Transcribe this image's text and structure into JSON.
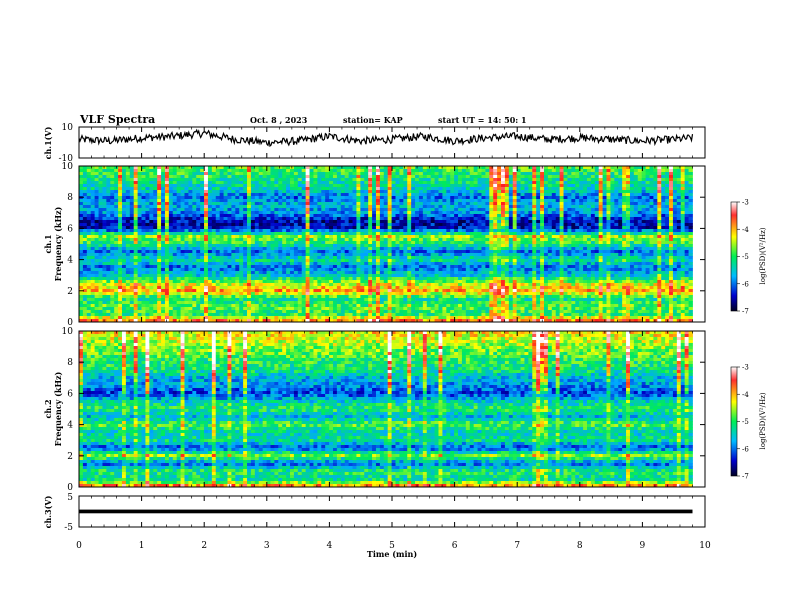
{
  "header": {
    "title": "VLF Spectra",
    "date": "Oct. 8 , 2023",
    "station": "station= KAP",
    "start_ut": "start  UT  =   14: 50: 1"
  },
  "colorbar": {
    "label": "log(PSD)(V²/Hz)",
    "ticks": [
      "-3",
      "-4",
      "-5",
      "-6",
      "-7"
    ],
    "colors": [
      "#7a0000",
      "#ff0000",
      "#ffff00",
      "#00ff66",
      "#00aaff",
      "#0000aa",
      "#000033"
    ]
  },
  "chart_data": [
    {
      "type": "line",
      "panel": "ch1-waveform",
      "ylabel": "ch.1(V)",
      "ylim": [
        -10,
        10
      ],
      "y_ticks": [
        "10",
        "-10"
      ],
      "xlim": [
        0,
        10
      ],
      "series": [
        {
          "x": [
            0,
            0.5,
            1,
            1.5,
            2,
            2.5,
            3,
            3.5,
            4,
            4.5,
            5,
            5.5,
            6,
            6.5,
            7,
            7.5,
            8,
            8.5,
            9,
            9.5,
            9.8
          ],
          "values": [
            2,
            1,
            3,
            4,
            6,
            2,
            0,
            1,
            4,
            1,
            2,
            4,
            1,
            3,
            4,
            2,
            3,
            2,
            1,
            2,
            3
          ]
        }
      ]
    },
    {
      "type": "heatmap",
      "panel": "ch1-spectrogram",
      "ylabel": "ch.1\nFrequency (kHz)",
      "ylim": [
        0,
        10
      ],
      "y_ticks": [
        "10",
        "8",
        "6",
        "4",
        "2",
        "0"
      ],
      "xlim": [
        0,
        10
      ],
      "data_end_min": 9.8,
      "color_scale": [
        -7,
        -3
      ],
      "band_profile_khz": [
        0,
        0.5,
        1,
        1.5,
        2,
        2.5,
        3,
        3.5,
        4,
        4.5,
        5,
        5.5,
        6,
        6.5,
        7,
        7.5,
        8,
        8.5,
        9,
        9.5,
        10
      ],
      "band_profile_logpsd": [
        -3.6,
        -5.0,
        -4.8,
        -5.2,
        -4.0,
        -4.5,
        -5.5,
        -6.0,
        -5.2,
        -6.0,
        -5.1,
        -4.6,
        -6.4,
        -6.5,
        -5.8,
        -5.6,
        -6.0,
        -5.4,
        -5.2,
        -5.0,
        -4.8
      ]
    },
    {
      "type": "heatmap",
      "panel": "ch2-spectrogram",
      "ylabel": "ch.2\nFrequency (kHz)",
      "ylim": [
        0,
        10
      ],
      "y_ticks": [
        "10",
        "8",
        "6",
        "4",
        "2",
        "0"
      ],
      "xlim": [
        0,
        10
      ],
      "data_end_min": 9.8,
      "color_scale": [
        -7,
        -3
      ],
      "band_profile_khz": [
        0,
        0.5,
        1,
        1.5,
        2,
        2.5,
        3,
        3.5,
        4,
        4.5,
        5,
        5.5,
        6,
        6.5,
        7,
        7.5,
        8,
        8.5,
        9,
        9.5,
        10
      ],
      "band_profile_logpsd": [
        -3.6,
        -5.3,
        -5.0,
        -6.0,
        -4.6,
        -6.1,
        -5.2,
        -5.4,
        -4.8,
        -5.6,
        -5.0,
        -5.4,
        -6.2,
        -5.8,
        -5.6,
        -5.1,
        -5.0,
        -4.8,
        -4.6,
        -4.4,
        -4.2
      ]
    },
    {
      "type": "line",
      "panel": "ch3-waveform",
      "ylabel": "ch.3(V)",
      "ylim": [
        -5,
        5
      ],
      "y_ticks": [
        "5",
        "-5"
      ],
      "xlim": [
        0,
        10
      ],
      "xlabel": "Time (min)",
      "x_ticks": [
        "0",
        "1",
        "2",
        "3",
        "4",
        "5",
        "6",
        "7",
        "8",
        "9",
        "10"
      ],
      "series": [
        {
          "x": [
            0,
            9.8
          ],
          "values": [
            0,
            0
          ],
          "band_halfwidth_v": 0.6
        }
      ]
    }
  ]
}
